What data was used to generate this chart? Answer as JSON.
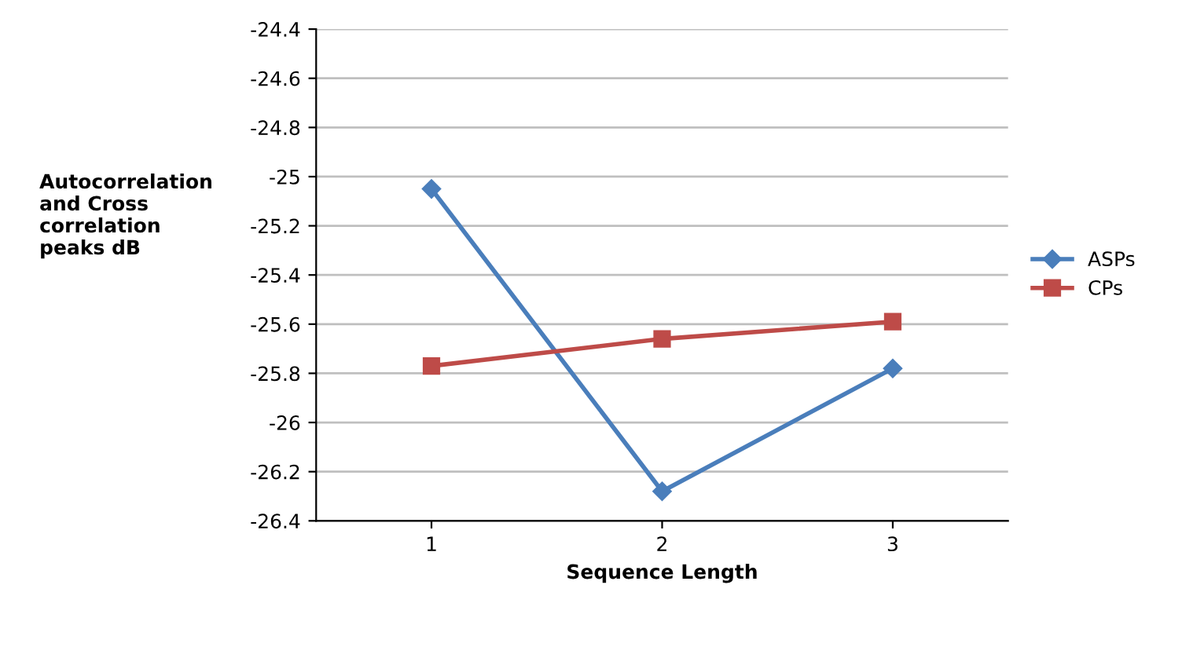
{
  "chart_data": {
    "type": "line",
    "xlabel": "Sequence Length",
    "ylabel": "Autocorrelation\nand Cross\ncorrelation\npeaks dB",
    "categories": [
      "1",
      "2",
      "3"
    ],
    "series": [
      {
        "name": "ASPs",
        "color": "#4a7ebb",
        "marker": "diamond",
        "values": [
          -25.05,
          -26.28,
          -25.78
        ]
      },
      {
        "name": "CPs",
        "color": "#be4b48",
        "marker": "square",
        "values": [
          -25.77,
          -25.66,
          -25.59
        ]
      }
    ],
    "ylim": [
      -26.4,
      -24.4
    ],
    "yticks": [
      -26.4,
      -26.2,
      -26,
      -25.8,
      -25.6,
      -25.4,
      -25.2,
      -25,
      -24.8,
      -24.6,
      -24.4
    ],
    "grid": "y",
    "legend": "right",
    "line_style": "solid"
  }
}
